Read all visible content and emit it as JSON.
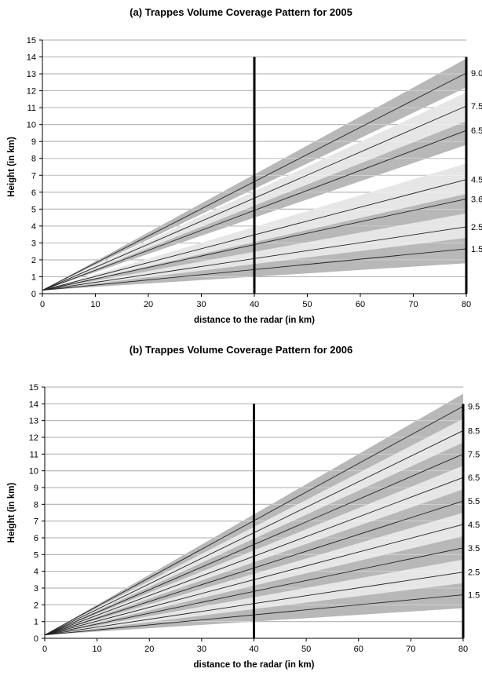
{
  "chart_data": [
    {
      "type": "area",
      "title": "(a) Trappes Volume Coverage Pattern for 2005",
      "xlabel": "distance to the radar (in km)",
      "ylabel": "Height (in km)",
      "xlim": [
        0,
        80
      ],
      "ylim": [
        0,
        15
      ],
      "x_ticks": [
        "0",
        "10",
        "20",
        "30",
        "40",
        "50",
        "60",
        "70",
        "80"
      ],
      "y_ticks": [
        "0",
        "1",
        "2",
        "3",
        "4",
        "5",
        "6",
        "7",
        "8",
        "9",
        "10",
        "11",
        "12",
        "13",
        "14",
        "15"
      ],
      "grid": true,
      "vertical_markers_km": [
        40,
        80
      ],
      "beam_height_at_origin_km": 0.2,
      "series": [
        {
          "name": "1.5",
          "height_at_80km": 2.65,
          "band_low_at_80km": 1.8,
          "band_high_at_80km": 3.5
        },
        {
          "name": "2.5",
          "height_at_80km": 3.95,
          "band_low_at_80km": 3.3,
          "band_high_at_80km": 5.0
        },
        {
          "name": "3.6",
          "height_at_80km": 5.6,
          "band_low_at_80km": 4.75,
          "band_high_at_80km": 6.5
        },
        {
          "name": "4.5",
          "height_at_80km": 6.75,
          "band_low_at_80km": 5.9,
          "band_high_at_80km": 7.7
        },
        {
          "name": "6.5",
          "height_at_80km": 9.65,
          "band_low_at_80km": 8.8,
          "band_high_at_80km": 10.5
        },
        {
          "name": "7.5",
          "height_at_80km": 11.1,
          "band_low_at_80km": 10.2,
          "band_high_at_80km": 11.9
        },
        {
          "name": "9.0",
          "height_at_80km": 13.05,
          "band_low_at_80km": 12.2,
          "band_high_at_80km": 13.9
        }
      ]
    },
    {
      "type": "area",
      "title": "(b) Trappes Volume Coverage Pattern for 2006",
      "xlabel": "distance to the radar (in km)",
      "ylabel": "Height (in km)",
      "xlim": [
        0,
        80
      ],
      "ylim": [
        0,
        15
      ],
      "x_ticks": [
        "0",
        "10",
        "20",
        "30",
        "40",
        "50",
        "60",
        "70",
        "80"
      ],
      "y_ticks": [
        "0",
        "1",
        "2",
        "3",
        "4",
        "5",
        "6",
        "7",
        "8",
        "9",
        "10",
        "11",
        "12",
        "13",
        "14",
        "15"
      ],
      "grid": true,
      "vertical_markers_km": [
        40,
        80
      ],
      "beam_height_at_origin_km": 0.2,
      "series": [
        {
          "name": "1.5",
          "height_at_80km": 2.6,
          "band_low_at_80km": 1.8,
          "band_high_at_80km": 3.3
        },
        {
          "name": "2.5",
          "height_at_80km": 3.95,
          "band_low_at_80km": 3.3,
          "band_high_at_80km": 4.7
        },
        {
          "name": "3.5",
          "height_at_80km": 5.4,
          "band_low_at_80km": 4.7,
          "band_high_at_80km": 6.1
        },
        {
          "name": "4.5",
          "height_at_80km": 6.8,
          "band_low_at_80km": 6.1,
          "band_high_at_80km": 7.5
        },
        {
          "name": "5.5",
          "height_at_80km": 8.2,
          "band_low_at_80km": 7.5,
          "band_high_at_80km": 8.9
        },
        {
          "name": "6.5",
          "height_at_80km": 9.6,
          "band_low_at_80km": 8.9,
          "band_high_at_80km": 10.3
        },
        {
          "name": "7.5",
          "height_at_80km": 11.0,
          "band_low_at_80km": 10.3,
          "band_high_at_80km": 11.7
        },
        {
          "name": "8.5",
          "height_at_80km": 12.4,
          "band_low_at_80km": 11.7,
          "band_high_at_80km": 13.1
        },
        {
          "name": "9.5",
          "height_at_80km": 13.85,
          "band_low_at_80km": 13.1,
          "band_high_at_80km": 14.6
        }
      ]
    }
  ]
}
